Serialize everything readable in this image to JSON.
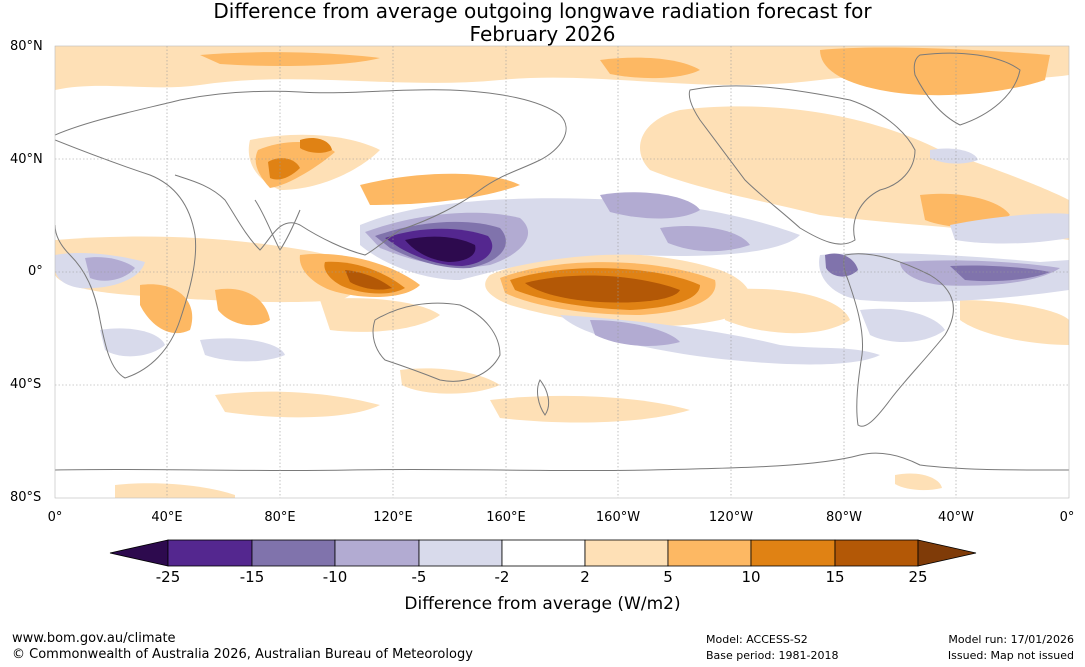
{
  "title": {
    "line1": "Difference from average outgoing longwave radiation forecast for",
    "line2": "February 2026"
  },
  "map": {
    "lat_labels": [
      "80°N",
      "40°N",
      "0°",
      "40°S",
      "80°S"
    ],
    "lon_labels": [
      "0°",
      "40°E",
      "80°E",
      "120°E",
      "160°E",
      "160°W",
      "120°W",
      "80°W",
      "40°W",
      "0°"
    ]
  },
  "legend": {
    "label": "Difference from average (W/m2)",
    "ticks": [
      "-25",
      "-15",
      "-10",
      "-5",
      "-2",
      "2",
      "5",
      "10",
      "15",
      "25"
    ],
    "colors": {
      "below_neg25": "#2d0a4e",
      "neg25_neg15": "#54278f",
      "neg15_neg10": "#8073ac",
      "neg10_neg5": "#b2abd2",
      "neg5_neg2": "#d8daeb",
      "neg2_2": "#ffffff",
      "pos2_5": "#fee0b6",
      "pos5_10": "#fdb863",
      "pos10_15": "#e08214",
      "pos15_25": "#b35806",
      "above_25": "#7f3b08"
    }
  },
  "footer": {
    "url": "www.bom.gov.au/climate",
    "copyright": "© Commonwealth of Australia 2026, Australian Bureau of Meteorology",
    "model": "Model: ACCESS-S2",
    "base_period": "Base period: 1981-2018",
    "model_run": "Model run: 17/01/2026",
    "issued": "Issued: Map not issued"
  }
}
